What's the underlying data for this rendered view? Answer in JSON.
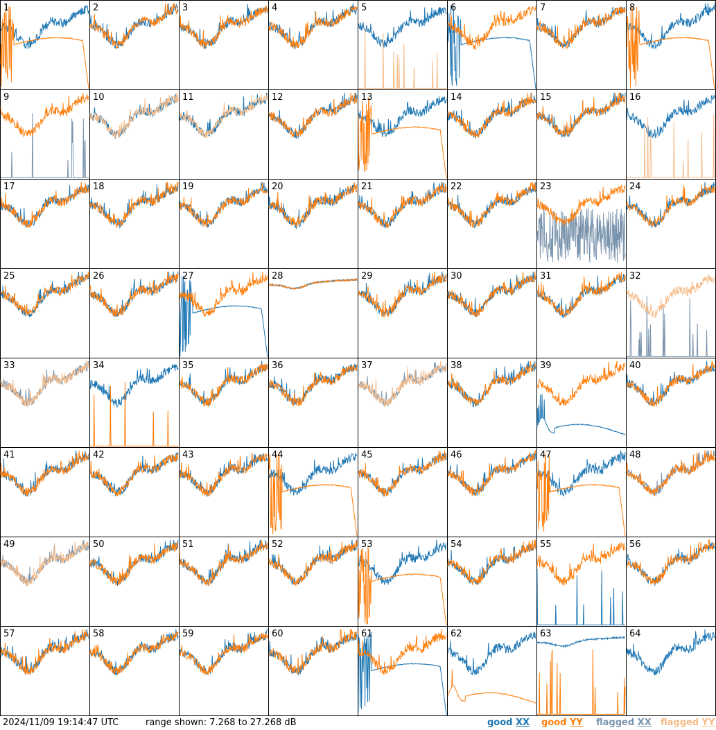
{
  "footer": {
    "timestamp": "2024/11/09 19:14:47 UTC",
    "range": "range shown: 7.268 to 27.268 dB"
  },
  "legend": [
    {
      "pre": "good ",
      "pol": "XX",
      "color": "#1f77b4"
    },
    {
      "pre": "good ",
      "pol": "YY",
      "color": "#ff7f0e"
    },
    {
      "pre": "flagged ",
      "pol": "XX",
      "color": "#7a94ad"
    },
    {
      "pre": "flagged ",
      "pol": "YY",
      "color": "#f5bb88"
    }
  ],
  "colors": {
    "good_xx": "#1f77b4",
    "good_yy": "#ff7f0e",
    "flagged_xx": "#7a94ad",
    "flagged_yy": "#f5bb88"
  },
  "chart_data": {
    "type": "line",
    "grid": "8x8 small multiples",
    "ylim_db": [
      7.268,
      27.268
    ],
    "panels": [
      {
        "label": "1",
        "xx": "good",
        "yy": "good",
        "xx_shape": "normal",
        "yy_shape": "dropout"
      },
      {
        "label": "2",
        "xx": "good",
        "yy": "good",
        "xx_shape": "normal",
        "yy_shape": "normal"
      },
      {
        "label": "3",
        "xx": "good",
        "yy": "good",
        "xx_shape": "normal",
        "yy_shape": "normal"
      },
      {
        "label": "4",
        "xx": "good",
        "yy": "good",
        "xx_shape": "normal",
        "yy_shape": "normal"
      },
      {
        "label": "5",
        "xx": "good",
        "yy": "flagged",
        "xx_shape": "normal",
        "yy_shape": "spikes"
      },
      {
        "label": "6",
        "xx": "good",
        "yy": "good",
        "xx_shape": "dropout",
        "yy_shape": "normal"
      },
      {
        "label": "7",
        "xx": "good",
        "yy": "good",
        "xx_shape": "normal",
        "yy_shape": "normal"
      },
      {
        "label": "8",
        "xx": "good",
        "yy": "good",
        "xx_shape": "normal",
        "yy_shape": "dropout"
      },
      {
        "label": "9",
        "xx": "flagged",
        "yy": "good",
        "xx_shape": "spikes",
        "yy_shape": "normal"
      },
      {
        "label": "10",
        "xx": "good",
        "yy": "flagged",
        "xx_shape": "normal",
        "yy_shape": "normal"
      },
      {
        "label": "11",
        "xx": "good",
        "yy": "flagged",
        "xx_shape": "normal",
        "yy_shape": "normal"
      },
      {
        "label": "12",
        "xx": "good",
        "yy": "good",
        "xx_shape": "normal",
        "yy_shape": "normal"
      },
      {
        "label": "13",
        "xx": "good",
        "yy": "good",
        "xx_shape": "normal",
        "yy_shape": "dropout"
      },
      {
        "label": "14",
        "xx": "good",
        "yy": "good",
        "xx_shape": "normal",
        "yy_shape": "normal"
      },
      {
        "label": "15",
        "xx": "good",
        "yy": "good",
        "xx_shape": "normal",
        "yy_shape": "normal"
      },
      {
        "label": "16",
        "xx": "good",
        "yy": "flagged",
        "xx_shape": "normal",
        "yy_shape": "spikes"
      },
      {
        "label": "17",
        "xx": "good",
        "yy": "good",
        "xx_shape": "normal",
        "yy_shape": "normal"
      },
      {
        "label": "18",
        "xx": "good",
        "yy": "good",
        "xx_shape": "normal",
        "yy_shape": "normal"
      },
      {
        "label": "19",
        "xx": "good",
        "yy": "good",
        "xx_shape": "normal",
        "yy_shape": "normal"
      },
      {
        "label": "20",
        "xx": "good",
        "yy": "good",
        "xx_shape": "normal",
        "yy_shape": "normal"
      },
      {
        "label": "21",
        "xx": "good",
        "yy": "good",
        "xx_shape": "normal",
        "yy_shape": "normal"
      },
      {
        "label": "22",
        "xx": "good",
        "yy": "good",
        "xx_shape": "normal",
        "yy_shape": "normal"
      },
      {
        "label": "23",
        "xx": "flagged",
        "yy": "good",
        "xx_shape": "noisy",
        "yy_shape": "normal"
      },
      {
        "label": "24",
        "xx": "good",
        "yy": "good",
        "xx_shape": "normal",
        "yy_shape": "normal"
      },
      {
        "label": "25",
        "xx": "good",
        "yy": "good",
        "xx_shape": "normal",
        "yy_shape": "normal"
      },
      {
        "label": "26",
        "xx": "good",
        "yy": "good",
        "xx_shape": "normal",
        "yy_shape": "normal"
      },
      {
        "label": "27",
        "xx": "good",
        "yy": "good",
        "xx_shape": "dropout",
        "yy_shape": "normal"
      },
      {
        "label": "28",
        "xx": "good",
        "yy": "good",
        "xx_shape": "flat",
        "yy_shape": "flat"
      },
      {
        "label": "29",
        "xx": "good",
        "yy": "good",
        "xx_shape": "normal",
        "yy_shape": "normal"
      },
      {
        "label": "30",
        "xx": "good",
        "yy": "good",
        "xx_shape": "normal",
        "yy_shape": "normal"
      },
      {
        "label": "31",
        "xx": "good",
        "yy": "good",
        "xx_shape": "normal",
        "yy_shape": "normal"
      },
      {
        "label": "32",
        "xx": "flagged",
        "yy": "flagged",
        "xx_shape": "spikes",
        "yy_shape": "normal"
      },
      {
        "label": "33",
        "xx": "flagged",
        "yy": "flagged",
        "xx_shape": "normal",
        "yy_shape": "normal"
      },
      {
        "label": "34",
        "xx": "good",
        "yy": "good",
        "xx_shape": "normal",
        "yy_shape": "spikes"
      },
      {
        "label": "35",
        "xx": "good",
        "yy": "good",
        "xx_shape": "normal",
        "yy_shape": "normal"
      },
      {
        "label": "36",
        "xx": "good",
        "yy": "good",
        "xx_shape": "normal",
        "yy_shape": "normal"
      },
      {
        "label": "37",
        "xx": "flagged",
        "yy": "flagged",
        "xx_shape": "normal",
        "yy_shape": "normal"
      },
      {
        "label": "38",
        "xx": "good",
        "yy": "good",
        "xx_shape": "normal",
        "yy_shape": "normal"
      },
      {
        "label": "39",
        "xx": "good",
        "yy": "good",
        "xx_shape": "low",
        "yy_shape": "normal"
      },
      {
        "label": "40",
        "xx": "good",
        "yy": "good",
        "xx_shape": "normal",
        "yy_shape": "normal"
      },
      {
        "label": "41",
        "xx": "good",
        "yy": "good",
        "xx_shape": "normal",
        "yy_shape": "normal"
      },
      {
        "label": "42",
        "xx": "good",
        "yy": "good",
        "xx_shape": "normal",
        "yy_shape": "normal"
      },
      {
        "label": "43",
        "xx": "good",
        "yy": "good",
        "xx_shape": "normal",
        "yy_shape": "normal"
      },
      {
        "label": "44",
        "xx": "good",
        "yy": "good",
        "xx_shape": "normal",
        "yy_shape": "dropout"
      },
      {
        "label": "45",
        "xx": "good",
        "yy": "good",
        "xx_shape": "normal",
        "yy_shape": "normal"
      },
      {
        "label": "46",
        "xx": "good",
        "yy": "good",
        "xx_shape": "normal",
        "yy_shape": "normal"
      },
      {
        "label": "47",
        "xx": "good",
        "yy": "good",
        "xx_shape": "normal",
        "yy_shape": "dropout"
      },
      {
        "label": "48",
        "xx": "flagged",
        "yy": "good",
        "xx_shape": "normal",
        "yy_shape": "normal"
      },
      {
        "label": "49",
        "xx": "flagged",
        "yy": "flagged",
        "xx_shape": "normal",
        "yy_shape": "normal"
      },
      {
        "label": "50",
        "xx": "good",
        "yy": "good",
        "xx_shape": "normal",
        "yy_shape": "normal"
      },
      {
        "label": "51",
        "xx": "good",
        "yy": "good",
        "xx_shape": "normal",
        "yy_shape": "normal"
      },
      {
        "label": "52",
        "xx": "good",
        "yy": "good",
        "xx_shape": "normal",
        "yy_shape": "normal"
      },
      {
        "label": "53",
        "xx": "good",
        "yy": "good",
        "xx_shape": "normal",
        "yy_shape": "dropout"
      },
      {
        "label": "54",
        "xx": "good",
        "yy": "good",
        "xx_shape": "normal",
        "yy_shape": "normal"
      },
      {
        "label": "55",
        "xx": "good",
        "yy": "good",
        "xx_shape": "spikes",
        "yy_shape": "normal"
      },
      {
        "label": "56",
        "xx": "good",
        "yy": "good",
        "xx_shape": "normal",
        "yy_shape": "normal"
      },
      {
        "label": "57",
        "xx": "good",
        "yy": "good",
        "xx_shape": "normal",
        "yy_shape": "normal"
      },
      {
        "label": "58",
        "xx": "good",
        "yy": "good",
        "xx_shape": "normal",
        "yy_shape": "normal"
      },
      {
        "label": "59",
        "xx": "good",
        "yy": "good",
        "xx_shape": "normal",
        "yy_shape": "normal"
      },
      {
        "label": "60",
        "xx": "good",
        "yy": "good",
        "xx_shape": "normal",
        "yy_shape": "normal"
      },
      {
        "label": "61",
        "xx": "good",
        "yy": "good",
        "xx_shape": "dropout",
        "yy_shape": "normal"
      },
      {
        "label": "62",
        "xx": "good",
        "yy": "good",
        "xx_shape": "normal",
        "yy_shape": "low"
      },
      {
        "label": "63",
        "xx": "good",
        "yy": "good",
        "xx_shape": "flat",
        "yy_shape": "spikes"
      },
      {
        "label": "64",
        "xx": "good",
        "yy": "good",
        "xx_shape": "normal",
        "yy_shape": "none"
      }
    ]
  }
}
